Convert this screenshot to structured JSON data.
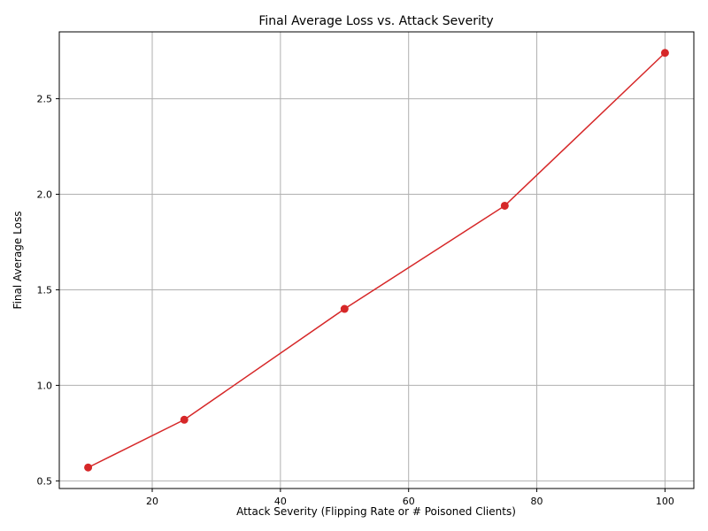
{
  "chart_data": {
    "type": "line",
    "title": "Final Average Loss vs. Attack Severity",
    "xlabel": "Attack Severity (Flipping Rate or # Poisoned Clients)",
    "ylabel": "Final Average Loss",
    "x": [
      10,
      25,
      50,
      75,
      100
    ],
    "series": [
      {
        "values": [
          0.57,
          0.82,
          1.4,
          1.94,
          2.74
        ],
        "color": "#d62728",
        "marker": "circle"
      }
    ],
    "xlim": [
      5.5,
      104.5
    ],
    "ylim": [
      0.46,
      2.85
    ],
    "x_ticks": [
      20,
      40,
      60,
      80,
      100
    ],
    "y_ticks": [
      0.5,
      1.0,
      1.5,
      2.0,
      2.5
    ],
    "x_tick_labels": [
      "20",
      "40",
      "60",
      "80",
      "100"
    ],
    "y_tick_labels": [
      "0.5",
      "1.0",
      "1.5",
      "2.0",
      "2.5"
    ],
    "grid": true,
    "grid_color": "#b0b0b0",
    "axis_color": "#000000"
  }
}
